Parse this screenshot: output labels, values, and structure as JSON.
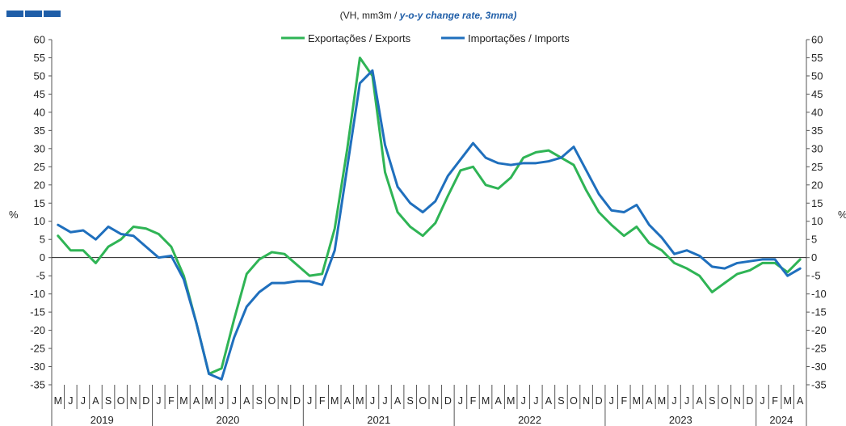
{
  "chart_data": {
    "type": "line",
    "subtitle_plain": "(VH, mm3m  / ",
    "subtitle_em": "y-o-y change rate, 3mma)",
    "ylabel_left": "%",
    "ylabel_right": "%",
    "ylim": [
      -35,
      60
    ],
    "yticks": [
      60,
      55,
      50,
      45,
      40,
      35,
      30,
      25,
      20,
      15,
      10,
      5,
      0,
      -5,
      -10,
      -15,
      -20,
      -25,
      -30,
      -35
    ],
    "legend_position": "top-center",
    "months": [
      "M",
      "J",
      "J",
      "A",
      "S",
      "O",
      "N",
      "D",
      "J",
      "F",
      "M",
      "A",
      "M",
      "J",
      "J",
      "A",
      "S",
      "O",
      "N",
      "D",
      "J",
      "F",
      "M",
      "A",
      "M",
      "J",
      "J",
      "A",
      "S",
      "O",
      "N",
      "D",
      "J",
      "F",
      "M",
      "A",
      "M",
      "J",
      "J",
      "A",
      "S",
      "O",
      "N",
      "D",
      "J",
      "F",
      "M",
      "A",
      "M",
      "J",
      "J",
      "A",
      "S",
      "O",
      "N",
      "D",
      "J",
      "F",
      "M",
      "A"
    ],
    "years": [
      {
        "label": "2019",
        "start": 0,
        "count": 8
      },
      {
        "label": "2020",
        "start": 8,
        "count": 12
      },
      {
        "label": "2021",
        "start": 20,
        "count": 12
      },
      {
        "label": "2022",
        "start": 32,
        "count": 12
      },
      {
        "label": "2023",
        "start": 44,
        "count": 12
      },
      {
        "label": "2024",
        "start": 56,
        "count": 4
      }
    ],
    "series": [
      {
        "name": "Exportações / Exports",
        "color": "#2fb455",
        "values": [
          6,
          2,
          2,
          -1.5,
          3,
          5,
          8.5,
          8,
          6.5,
          3,
          -5,
          -18,
          -32,
          -30.5,
          -17,
          -4.5,
          -0.5,
          1.5,
          1,
          -2,
          -5,
          -4.5,
          8,
          30,
          55,
          50,
          23.5,
          12.5,
          8.5,
          6,
          9.5,
          17,
          24,
          25,
          20,
          19,
          22,
          27.5,
          29,
          29.5,
          27.5,
          25.5,
          18.5,
          12.5,
          9,
          6,
          8.5,
          4,
          2,
          -1.5,
          -3,
          -5,
          -9.5,
          -7,
          -4.5,
          -3.5,
          -1.5,
          -1.5,
          -4,
          -0.5
        ]
      },
      {
        "name": "Importações / Imports",
        "color": "#1f6fbd",
        "values": [
          9,
          7,
          7.5,
          5,
          8.5,
          6.5,
          6,
          3,
          0,
          0.5,
          -6,
          -18,
          -32,
          -33.5,
          -22,
          -13.5,
          -9.5,
          -7,
          -7,
          -6.5,
          -6.5,
          -7.5,
          2,
          25,
          48,
          51.5,
          31,
          19.5,
          15,
          12.5,
          15.5,
          22.5,
          27,
          31.5,
          27.5,
          26,
          25.5,
          26,
          26,
          26.5,
          27.5,
          30.5,
          24,
          17.5,
          13,
          12.5,
          14.5,
          9,
          5.5,
          1,
          2,
          0.5,
          -2.5,
          -3,
          -1.5,
          -1,
          -0.5,
          -0.5,
          -5,
          -3
        ]
      }
    ]
  }
}
